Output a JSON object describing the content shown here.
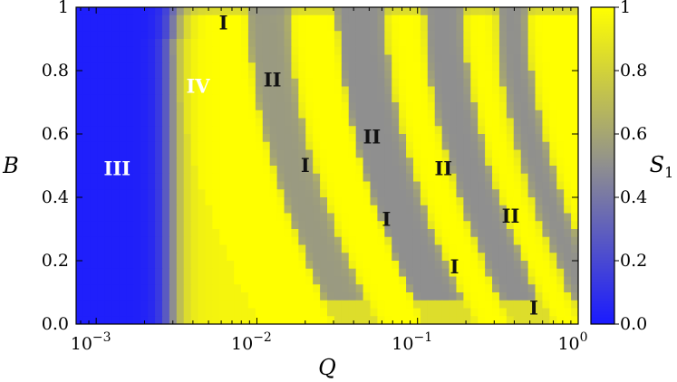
{
  "chart_data": {
    "type": "heatmap",
    "title": "",
    "xlabel": "Q",
    "ylabel": "B",
    "colorbar_label": "S",
    "colorbar_label_sub": "1",
    "x_scale": "log",
    "xlim": [
      0.00075,
      1.0
    ],
    "ylim": [
      0.0,
      1.0
    ],
    "x_ticks": [
      {
        "value": 0.001,
        "base": "10",
        "exp": "−3"
      },
      {
        "value": 0.01,
        "base": "10",
        "exp": "−2"
      },
      {
        "value": 0.1,
        "base": "10",
        "exp": "−1"
      },
      {
        "value": 1.0,
        "base": "10",
        "exp": "0"
      }
    ],
    "y_ticks": [
      {
        "value": 0.0,
        "label": "0.0"
      },
      {
        "value": 0.2,
        "label": "0.2"
      },
      {
        "value": 0.4,
        "label": "0.4"
      },
      {
        "value": 0.6,
        "label": "0.6"
      },
      {
        "value": 0.8,
        "label": "0.8"
      },
      {
        "value": 1.0,
        "label": "1"
      }
    ],
    "colorbar": {
      "range": [
        0.0,
        1.0
      ],
      "ticks": [
        {
          "value": 0.0,
          "label": "0.0"
        },
        {
          "value": 0.2,
          "label": "0.2"
        },
        {
          "value": 0.4,
          "label": "0.4"
        },
        {
          "value": 0.6,
          "label": "0.6"
        },
        {
          "value": 0.8,
          "label": "0.8"
        },
        {
          "value": 1.0,
          "label": "1"
        }
      ],
      "colors": [
        "#1a1aff",
        "#8f8f8f",
        "#ffff00"
      ]
    },
    "region_labels": [
      {
        "text": "III",
        "q": 0.00135,
        "b": 0.49,
        "color": "#ffffff"
      },
      {
        "text": "IV",
        "q": 0.0043,
        "b": 0.75,
        "color": "#ffffff"
      },
      {
        "text": "I",
        "q": 0.0062,
        "b": 0.95,
        "color": "#111111"
      },
      {
        "text": "II",
        "q": 0.0125,
        "b": 0.77,
        "color": "#111111"
      },
      {
        "text": "I",
        "q": 0.02,
        "b": 0.5,
        "color": "#111111"
      },
      {
        "text": "II",
        "q": 0.052,
        "b": 0.59,
        "color": "#111111"
      },
      {
        "text": "I",
        "q": 0.064,
        "b": 0.33,
        "color": "#111111"
      },
      {
        "text": "II",
        "q": 0.145,
        "b": 0.49,
        "color": "#111111"
      },
      {
        "text": "I",
        "q": 0.17,
        "b": 0.18,
        "color": "#111111"
      },
      {
        "text": "II",
        "q": 0.38,
        "b": 0.34,
        "color": "#111111"
      },
      {
        "text": "I",
        "q": 0.53,
        "b": 0.05,
        "color": "#111111"
      }
    ],
    "field": {
      "description_of_structure": "low Q (< ~0.003) S1≈0 (blue); elsewhere banded yellow/gray stripes curving toward larger Q at small B",
      "blue_boundary_q": 0.003,
      "band_centers_q_at_B1": [
        0.0062,
        0.0125,
        0.02,
        0.05,
        0.08,
        0.15,
        0.25,
        0.38,
        0.6
      ],
      "band_values": [
        1.0,
        0.55,
        1.0,
        0.5,
        1.0,
        0.5,
        1.0,
        0.5,
        1.0
      ]
    }
  }
}
